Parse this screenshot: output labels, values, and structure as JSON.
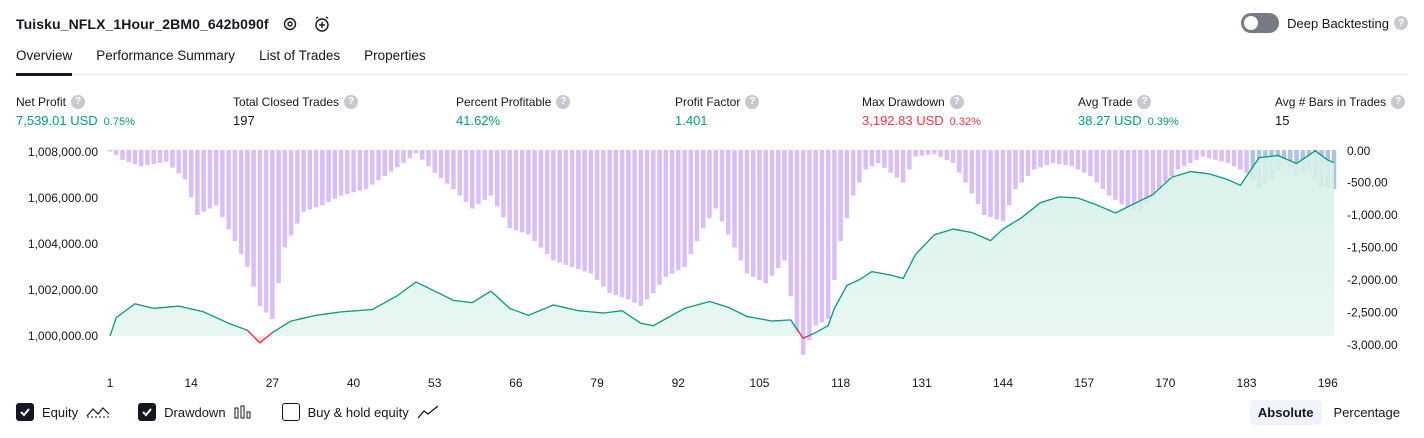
{
  "header": {
    "title": "Tuisku_NFLX_1Hour_2BM0_642b090f",
    "deep_backtesting_label": "Deep Backtesting",
    "help_glyph": "?"
  },
  "tabs": [
    {
      "label": "Overview",
      "active": true
    },
    {
      "label": "Performance Summary",
      "active": false
    },
    {
      "label": "List of Trades",
      "active": false
    },
    {
      "label": "Properties",
      "active": false
    }
  ],
  "metrics": [
    {
      "label": "Net Profit",
      "value": "7,539.01 USD",
      "pct": "0.75%",
      "color": "green"
    },
    {
      "label": "Total Closed Trades",
      "value": "197",
      "pct": "",
      "color": "dark"
    },
    {
      "label": "Percent Profitable",
      "value": "41.62%",
      "pct": "",
      "color": "green"
    },
    {
      "label": "Profit Factor",
      "value": "1.401",
      "pct": "",
      "color": "green"
    },
    {
      "label": "Max Drawdown",
      "value": "3,192.83 USD",
      "pct": "0.32%",
      "color": "red"
    },
    {
      "label": "Avg Trade",
      "value": "38.27 USD",
      "pct": "0.39%",
      "color": "green"
    },
    {
      "label": "Avg # Bars in Trades",
      "value": "15",
      "pct": "",
      "color": "dark"
    }
  ],
  "chart_data": {
    "type": "area",
    "x_tick_labels": [
      "1",
      "14",
      "27",
      "40",
      "53",
      "66",
      "79",
      "92",
      "105",
      "118",
      "131",
      "144",
      "157",
      "170",
      "183",
      "196"
    ],
    "left_axis_labels": [
      "1,008,000.00",
      "1,006,000.00",
      "1,004,000.00",
      "1,002,000.00",
      "1,000,000.00"
    ],
    "left_axis_values": [
      1008000,
      1006000,
      1004000,
      1002000,
      1000000
    ],
    "right_axis_labels": [
      "0.00",
      "-500.00",
      "-1,000.00",
      "-1,500.00",
      "-2,000.00",
      "-2,500.00",
      "-3,000.00"
    ],
    "right_axis_values": [
      0,
      -500,
      -1000,
      -1500,
      -2000,
      -2500,
      -3000
    ],
    "equity_ylim": [
      999200,
      1008000
    ],
    "drawdown_ylim": [
      -3150,
      0
    ],
    "equity_anchors": [
      [
        1,
        1000000
      ],
      [
        2,
        1000800
      ],
      [
        5,
        1001400
      ],
      [
        8,
        1001200
      ],
      [
        12,
        1001300
      ],
      [
        16,
        1001050
      ],
      [
        20,
        1000550
      ],
      [
        23,
        1000250
      ],
      [
        25,
        999700
      ],
      [
        27,
        1000150
      ],
      [
        30,
        1000650
      ],
      [
        34,
        1000900
      ],
      [
        38,
        1001050
      ],
      [
        43,
        1001150
      ],
      [
        47,
        1001750
      ],
      [
        50,
        1002350
      ],
      [
        53,
        1001950
      ],
      [
        56,
        1001550
      ],
      [
        59,
        1001450
      ],
      [
        62,
        1001950
      ],
      [
        65,
        1001200
      ],
      [
        68,
        1000900
      ],
      [
        72,
        1001350
      ],
      [
        76,
        1001100
      ],
      [
        80,
        1001000
      ],
      [
        83,
        1001100
      ],
      [
        86,
        1000550
      ],
      [
        88,
        1000450
      ],
      [
        90,
        1000750
      ],
      [
        93,
        1001200
      ],
      [
        97,
        1001500
      ],
      [
        100,
        1001250
      ],
      [
        103,
        1000850
      ],
      [
        107,
        1000650
      ],
      [
        110,
        1000700
      ],
      [
        112,
        999900
      ],
      [
        114,
        1000150
      ],
      [
        116,
        1000450
      ],
      [
        117,
        1001200
      ],
      [
        119,
        1002200
      ],
      [
        121,
        1002450
      ],
      [
        123,
        1002800
      ],
      [
        126,
        1002650
      ],
      [
        128,
        1002500
      ],
      [
        130,
        1003550
      ],
      [
        133,
        1004400
      ],
      [
        136,
        1004650
      ],
      [
        139,
        1004500
      ],
      [
        142,
        1004150
      ],
      [
        144,
        1004650
      ],
      [
        147,
        1005150
      ],
      [
        150,
        1005800
      ],
      [
        153,
        1006050
      ],
      [
        156,
        1006000
      ],
      [
        159,
        1005700
      ],
      [
        162,
        1005350
      ],
      [
        165,
        1005750
      ],
      [
        168,
        1006150
      ],
      [
        171,
        1006900
      ],
      [
        174,
        1007150
      ],
      [
        177,
        1007050
      ],
      [
        180,
        1006800
      ],
      [
        182,
        1006550
      ],
      [
        185,
        1007750
      ],
      [
        188,
        1007850
      ],
      [
        191,
        1007500
      ],
      [
        194,
        1008050
      ],
      [
        196,
        1007650
      ],
      [
        197,
        1007539
      ]
    ],
    "drawdown_anchors": [
      [
        1,
        0
      ],
      [
        3,
        -150
      ],
      [
        6,
        -250
      ],
      [
        10,
        -180
      ],
      [
        13,
        -450
      ],
      [
        15,
        -1000
      ],
      [
        18,
        -850
      ],
      [
        21,
        -1400
      ],
      [
        23,
        -1800
      ],
      [
        25,
        -2400
      ],
      [
        27,
        -2600
      ],
      [
        29,
        -1500
      ],
      [
        32,
        -950
      ],
      [
        35,
        -850
      ],
      [
        38,
        -700
      ],
      [
        42,
        -600
      ],
      [
        45,
        -400
      ],
      [
        48,
        -200
      ],
      [
        50,
        -50
      ],
      [
        53,
        -350
      ],
      [
        56,
        -600
      ],
      [
        59,
        -900
      ],
      [
        62,
        -700
      ],
      [
        65,
        -1200
      ],
      [
        68,
        -1300
      ],
      [
        72,
        -1700
      ],
      [
        75,
        -1800
      ],
      [
        78,
        -1900
      ],
      [
        81,
        -2200
      ],
      [
        84,
        -2300
      ],
      [
        86,
        -2400
      ],
      [
        88,
        -2200
      ],
      [
        90,
        -1950
      ],
      [
        93,
        -1800
      ],
      [
        96,
        -1200
      ],
      [
        98,
        -900
      ],
      [
        101,
        -1500
      ],
      [
        103,
        -1900
      ],
      [
        106,
        -2050
      ],
      [
        109,
        -1700
      ],
      [
        111,
        -2800
      ],
      [
        112,
        -3150
      ],
      [
        114,
        -2700
      ],
      [
        116,
        -2600
      ],
      [
        118,
        -1400
      ],
      [
        120,
        -700
      ],
      [
        122,
        -300
      ],
      [
        124,
        -200
      ],
      [
        128,
        -500
      ],
      [
        130,
        -100
      ],
      [
        133,
        -60
      ],
      [
        136,
        -200
      ],
      [
        138,
        -500
      ],
      [
        141,
        -1000
      ],
      [
        144,
        -1100
      ],
      [
        146,
        -600
      ],
      [
        149,
        -300
      ],
      [
        152,
        -200
      ],
      [
        155,
        -250
      ],
      [
        158,
        -400
      ],
      [
        161,
        -700
      ],
      [
        164,
        -900
      ],
      [
        166,
        -950
      ],
      [
        169,
        -600
      ],
      [
        172,
        -300
      ],
      [
        176,
        -100
      ],
      [
        180,
        -200
      ],
      [
        183,
        -350
      ],
      [
        185,
        -600
      ],
      [
        187,
        -450
      ],
      [
        189,
        -150
      ],
      [
        191,
        -400
      ],
      [
        193,
        -300
      ],
      [
        195,
        -550
      ],
      [
        197,
        -600
      ]
    ],
    "series": [
      {
        "name": "Equity",
        "colors": {
          "line": "#089981",
          "fill": "#d7f0e8",
          "loss": "#f23645"
        }
      },
      {
        "name": "Drawdown",
        "colors": {
          "bar": "#d4b3f5",
          "overlap": "#9db8dc"
        }
      }
    ]
  },
  "legend": {
    "items": [
      {
        "label": "Equity",
        "checked": true,
        "icon": "equity-line-icon"
      },
      {
        "label": "Drawdown",
        "checked": true,
        "icon": "drawdown-bars-icon"
      },
      {
        "label": "Buy & hold equity",
        "checked": false,
        "icon": "buy-hold-line-icon"
      }
    ]
  },
  "mode": {
    "absolute_label": "Absolute",
    "percentage_label": "Percentage",
    "active": "Absolute"
  }
}
